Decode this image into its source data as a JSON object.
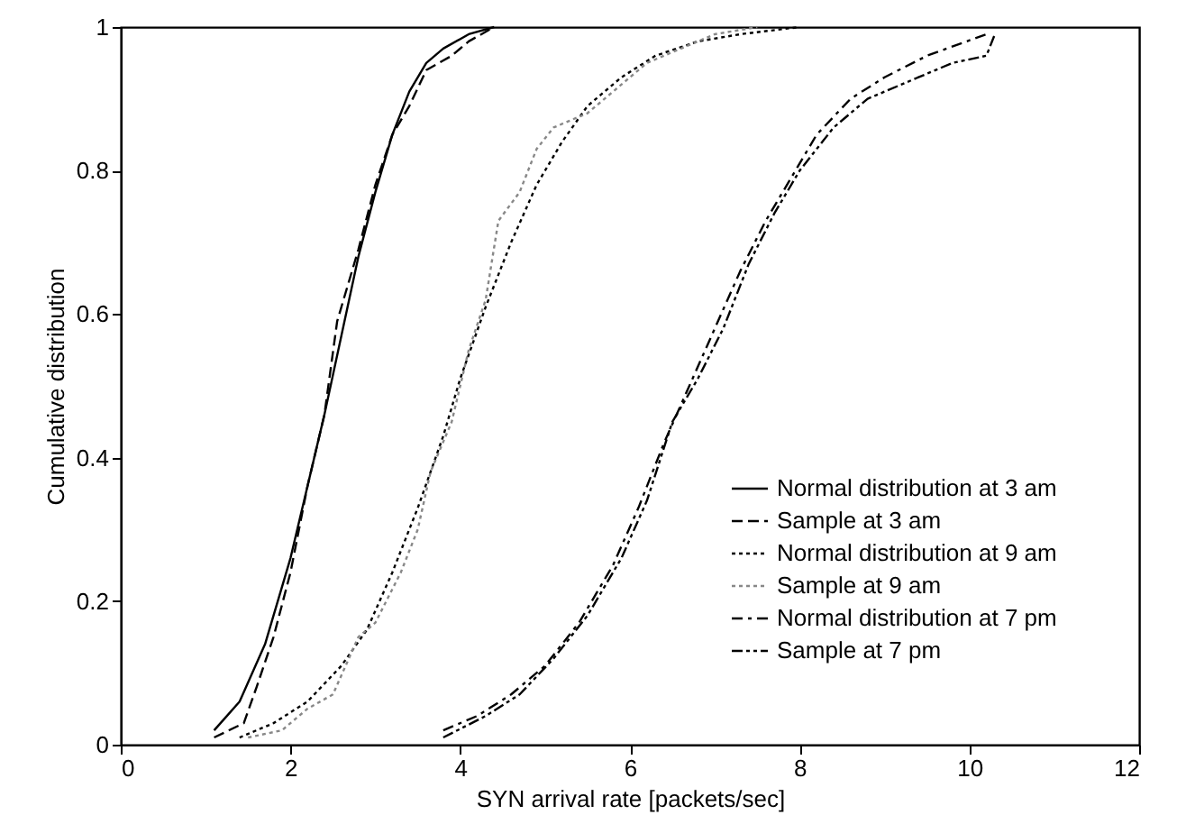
{
  "chart_data": {
    "type": "line",
    "xlabel": "SYN arrival rate [packets/sec]",
    "ylabel": "Cumulative distribution",
    "xlim": [
      0,
      12
    ],
    "xticks": [
      0,
      2,
      4,
      6,
      8,
      10,
      12
    ],
    "ylim": [
      0,
      1
    ],
    "yticks": [
      0,
      0.2,
      0.4,
      0.6,
      0.8,
      1
    ],
    "grid": false,
    "legend": "bottom right",
    "series": [
      {
        "name": "Normal distribution at 3 am",
        "color": "#000000",
        "line_style": "solid",
        "x": [
          1.1,
          1.4,
          1.7,
          2.0,
          2.2,
          2.4,
          2.6,
          2.8,
          3.0,
          3.2,
          3.4,
          3.6,
          3.8,
          4.1,
          4.4
        ],
        "values": [
          0.02,
          0.06,
          0.14,
          0.26,
          0.36,
          0.46,
          0.57,
          0.68,
          0.77,
          0.85,
          0.91,
          0.95,
          0.97,
          0.99,
          1.0
        ]
      },
      {
        "name": "Sample at 3 am",
        "color": "#000000",
        "line_style": "dashed",
        "x": [
          1.1,
          1.45,
          1.6,
          1.8,
          2.0,
          2.2,
          2.4,
          2.55,
          2.8,
          3.0,
          3.2,
          3.4,
          3.6,
          3.9,
          4.1,
          4.4
        ],
        "values": [
          0.01,
          0.03,
          0.08,
          0.15,
          0.24,
          0.36,
          0.46,
          0.59,
          0.69,
          0.78,
          0.85,
          0.89,
          0.94,
          0.96,
          0.98,
          1.0
        ]
      },
      {
        "name": "Normal distribution at 9 am",
        "color": "#000000",
        "line_style": "dotted",
        "x": [
          1.4,
          1.8,
          2.2,
          2.6,
          2.9,
          3.2,
          3.5,
          3.8,
          4.0,
          4.3,
          4.6,
          4.9,
          5.2,
          5.5,
          5.9,
          6.3,
          6.8,
          7.3,
          8.0
        ],
        "values": [
          0.01,
          0.03,
          0.06,
          0.11,
          0.16,
          0.24,
          0.33,
          0.43,
          0.51,
          0.61,
          0.7,
          0.78,
          0.84,
          0.89,
          0.93,
          0.96,
          0.98,
          0.99,
          1.0
        ]
      },
      {
        "name": "Sample at 9 am",
        "color": "#888888",
        "line_style": "dotted",
        "x": [
          1.5,
          1.9,
          2.2,
          2.5,
          2.8,
          3.0,
          3.3,
          3.5,
          3.65,
          3.9,
          4.1,
          4.3,
          4.45,
          4.7,
          4.9,
          5.1,
          5.5,
          5.7,
          6.2,
          6.6,
          7.0,
          7.5
        ],
        "values": [
          0.01,
          0.02,
          0.05,
          0.07,
          0.15,
          0.17,
          0.24,
          0.3,
          0.38,
          0.45,
          0.55,
          0.62,
          0.73,
          0.77,
          0.83,
          0.86,
          0.88,
          0.9,
          0.95,
          0.97,
          0.99,
          1.0
        ]
      },
      {
        "name": "Normal distribution at 7 pm",
        "color": "#000000",
        "line_style": "dashdot",
        "x": [
          3.8,
          4.2,
          4.6,
          5.0,
          5.4,
          5.8,
          6.1,
          6.4,
          6.7,
          7.0,
          7.3,
          7.6,
          7.9,
          8.2,
          8.6,
          9.0,
          9.5,
          10.2
        ],
        "values": [
          0.02,
          0.04,
          0.07,
          0.11,
          0.17,
          0.25,
          0.33,
          0.42,
          0.5,
          0.58,
          0.66,
          0.73,
          0.79,
          0.85,
          0.9,
          0.93,
          0.96,
          0.99
        ]
      },
      {
        "name": "Sample at 7 pm",
        "color": "#000000",
        "line_style": "dashdotdot",
        "x": [
          3.8,
          4.3,
          4.7,
          5.1,
          5.5,
          5.9,
          6.2,
          6.5,
          6.8,
          7.1,
          7.4,
          7.7,
          8.0,
          8.4,
          8.8,
          9.4,
          9.8,
          10.2,
          10.3
        ],
        "values": [
          0.01,
          0.04,
          0.07,
          0.12,
          0.18,
          0.26,
          0.34,
          0.45,
          0.51,
          0.58,
          0.67,
          0.74,
          0.8,
          0.86,
          0.9,
          0.93,
          0.95,
          0.96,
          0.99
        ]
      }
    ]
  }
}
